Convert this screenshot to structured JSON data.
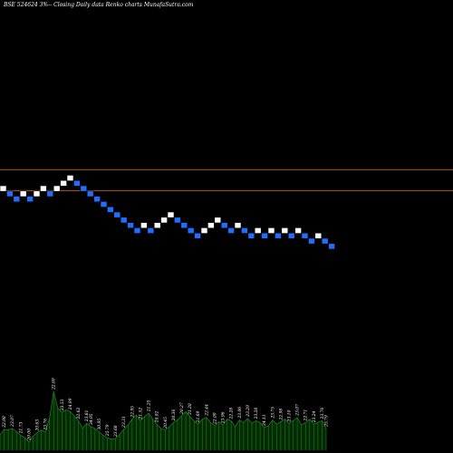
{
  "colors": {
    "background": "#000000",
    "up_brick": "#ffffff",
    "down_brick": "#1e6fff",
    "brick_border": "#000000",
    "level_line": "#b55a1a",
    "volume_fill": "#042a04",
    "volume_line": "#1f7a1f",
    "text": "#ffffff"
  },
  "chart_data": [
    {
      "type": "renko",
      "title": "BSE 524624  3%--  Closing Daily data  Renko  charts MunafaSutra.com",
      "brick_sequence": [
        "up",
        "down",
        "down",
        "up",
        "down",
        "up",
        "up",
        "down",
        "up",
        "up",
        "up",
        "down",
        "down",
        "down",
        "down",
        "down",
        "down",
        "down",
        "down",
        "down",
        "down",
        "up",
        "down",
        "up",
        "up",
        "up",
        "down",
        "down",
        "down",
        "down",
        "up",
        "up",
        "up",
        "down",
        "down",
        "up",
        "down",
        "down",
        "up",
        "down",
        "up",
        "down",
        "up",
        "down",
        "up",
        "down",
        "down",
        "up",
        "down",
        "down"
      ],
      "brick_level_start": 0,
      "reference_levels": [
        3.6,
        -0.4
      ]
    },
    {
      "type": "bar",
      "series": [
        {
          "values": [
            18,
            25,
            24,
            26,
            22,
            18,
            15,
            10,
            17,
            21,
            24,
            22,
            38,
            70,
            50,
            45,
            48,
            46,
            41,
            35,
            26,
            32,
            28,
            26,
            22,
            18,
            15,
            13,
            14,
            19,
            25,
            30,
            37,
            42,
            35,
            40,
            44,
            37,
            31,
            26,
            24,
            28,
            33,
            36,
            41,
            46,
            40,
            35,
            31,
            37,
            39,
            33,
            29,
            34,
            30,
            37,
            35,
            28,
            36,
            33,
            38,
            32,
            35,
            33,
            27,
            29,
            36,
            31,
            34,
            37,
            32,
            35,
            39,
            30,
            33,
            37,
            31,
            33,
            35,
            26
          ]
        }
      ],
      "value_labels": [
        {
          "index": 1,
          "text": "22.98"
        },
        {
          "index": 3,
          "text": "23.07"
        },
        {
          "index": 5,
          "text": "21.73"
        },
        {
          "index": 7,
          "text": "20.00"
        },
        {
          "index": 9,
          "text": "20.63"
        },
        {
          "index": 11,
          "text": "23.76"
        },
        {
          "index": 13,
          "text": "22.69"
        },
        {
          "index": 15,
          "text": "23.53"
        },
        {
          "index": 17,
          "text": "24.99"
        },
        {
          "index": 19,
          "text": "22.62"
        },
        {
          "index": 21,
          "text": "23.81"
        },
        {
          "index": 22,
          "text": "34.95"
        },
        {
          "index": 24,
          "text": "30.95"
        },
        {
          "index": 26,
          "text": "25.79"
        },
        {
          "index": 28,
          "text": "23.68"
        },
        {
          "index": 30,
          "text": "23.31"
        },
        {
          "index": 32,
          "text": "22.95"
        },
        {
          "index": 34,
          "text": "21.52"
        },
        {
          "index": 36,
          "text": "21.25"
        },
        {
          "index": 38,
          "text": "20.92"
        },
        {
          "index": 40,
          "text": "20.45"
        },
        {
          "index": 42,
          "text": "20.36"
        },
        {
          "index": 44,
          "text": "20.27"
        },
        {
          "index": 46,
          "text": "21.28"
        },
        {
          "index": 48,
          "text": "21.89"
        },
        {
          "index": 50,
          "text": "22.44"
        },
        {
          "index": 52,
          "text": "22.09"
        },
        {
          "index": 54,
          "text": "23.96"
        },
        {
          "index": 56,
          "text": "22.28"
        },
        {
          "index": 58,
          "text": "23.06"
        },
        {
          "index": 60,
          "text": "23.29"
        },
        {
          "index": 62,
          "text": "23.28"
        },
        {
          "index": 64,
          "text": "24.11"
        },
        {
          "index": 66,
          "text": "23.75"
        },
        {
          "index": 68,
          "text": "22.98"
        },
        {
          "index": 70,
          "text": "23.10"
        },
        {
          "index": 72,
          "text": "23.07"
        },
        {
          "index": 74,
          "text": "22.71"
        },
        {
          "index": 76,
          "text": "23.24"
        },
        {
          "index": 78,
          "text": "23.76"
        },
        {
          "index": 79,
          "text": "25.79"
        }
      ]
    }
  ]
}
